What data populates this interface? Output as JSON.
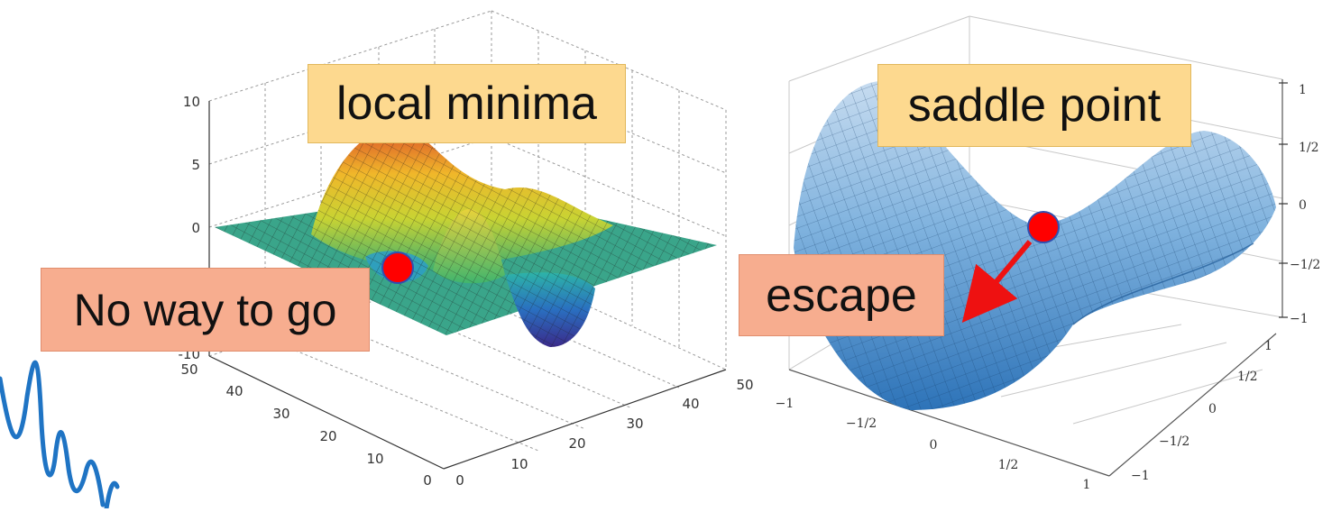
{
  "colors": {
    "yellow_callout": "#fdd98f",
    "salmon_callout": "#f7ad8f",
    "marker": "#ff0000",
    "arrow": "#ee1111",
    "doodle": "#1f74c4"
  },
  "chart_data": [
    {
      "type": "surface",
      "colormap": "parula",
      "grid": true,
      "axes": {
        "x": {
          "ticks": [
            "0",
            "10",
            "20",
            "30",
            "40",
            "50"
          ],
          "range": [
            0,
            50
          ]
        },
        "y": {
          "ticks": [
            "0",
            "10",
            "20",
            "30",
            "40",
            "50"
          ],
          "range": [
            0,
            50
          ]
        },
        "z": {
          "ticks": [
            "-10",
            "0",
            "5",
            "10"
          ],
          "range": [
            -10,
            10
          ]
        }
      },
      "annotations": {
        "top": "local minima",
        "bottom": "No way to go"
      },
      "marker": {
        "label": "local minimum point"
      }
    },
    {
      "type": "surface",
      "colormap": "blues",
      "grid": true,
      "axes": {
        "x": {
          "ticks": [
            "−1",
            "−1/2",
            "0",
            "1/2",
            "1"
          ],
          "range": [
            -1,
            1
          ]
        },
        "y": {
          "ticks": [
            "−1",
            "−1/2",
            "0",
            "1/2",
            "1"
          ],
          "range": [
            -1,
            1
          ]
        },
        "z": {
          "ticks": [
            "−1",
            "−1/2",
            "0",
            "1/2",
            "1"
          ],
          "range": [
            -1,
            1
          ]
        }
      },
      "annotations": {
        "top": "saddle point",
        "bottom": "escape"
      },
      "marker": {
        "label": "saddle point"
      }
    }
  ]
}
